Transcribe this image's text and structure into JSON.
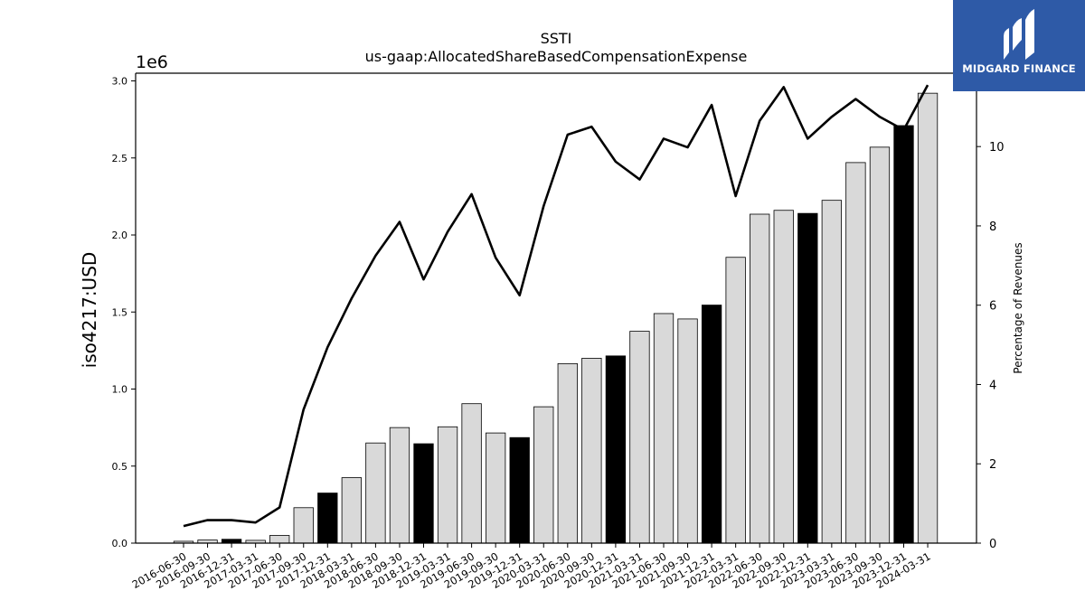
{
  "chart_data": {
    "type": "bar",
    "title": "SSTI",
    "subtitle": "us-gaap:AllocatedShareBasedCompensationExpense",
    "ylabel": "iso4217:USD",
    "y_offset_label": "1e6",
    "y2label": "Percentage of Revenues",
    "ylim": [
      0,
      3.05
    ],
    "y2lim": [
      0,
      11.85
    ],
    "yticks": [
      "0.0",
      "0.5",
      "1.0",
      "1.5",
      "2.0",
      "2.5",
      "3.0"
    ],
    "y2ticks": [
      "0",
      "2",
      "4",
      "6",
      "8",
      "10"
    ],
    "grid": false,
    "categories": [
      "2016-06-30",
      "2016-09-30",
      "2016-12-31",
      "2017-03-31",
      "2017-06-30",
      "2017-09-30",
      "2017-12-31",
      "2018-03-31",
      "2018-06-30",
      "2018-09-30",
      "2018-12-31",
      "2019-03-31",
      "2019-06-30",
      "2019-09-30",
      "2019-12-31",
      "2020-03-31",
      "2020-06-30",
      "2020-09-30",
      "2020-12-31",
      "2021-03-31",
      "2021-06-30",
      "2021-09-30",
      "2021-12-31",
      "2022-03-31",
      "2022-06-30",
      "2022-09-30",
      "2022-12-31",
      "2023-03-31",
      "2023-06-30",
      "2023-09-30",
      "2023-12-31",
      "2024-03-31"
    ],
    "series": [
      {
        "type": "bar",
        "axis": "left",
        "values": [
          0.012,
          0.02,
          0.025,
          0.018,
          0.05,
          0.23,
          0.325,
          0.425,
          0.65,
          0.75,
          0.645,
          0.755,
          0.905,
          0.715,
          0.685,
          0.885,
          1.165,
          1.2,
          1.215,
          1.375,
          1.49,
          1.455,
          1.545,
          1.855,
          2.135,
          2.16,
          2.14,
          2.225,
          2.47,
          2.57,
          2.71,
          2.92
        ],
        "fiscal_year_end": [
          false,
          false,
          true,
          false,
          false,
          false,
          true,
          false,
          false,
          false,
          true,
          false,
          false,
          false,
          true,
          false,
          false,
          false,
          true,
          false,
          false,
          false,
          true,
          false,
          false,
          false,
          true,
          false,
          false,
          false,
          true,
          false
        ]
      },
      {
        "type": "line",
        "axis": "right",
        "values": [
          0.43,
          0.58,
          0.58,
          0.52,
          0.9,
          3.37,
          4.94,
          6.17,
          7.25,
          8.1,
          6.65,
          7.85,
          8.8,
          7.2,
          6.25,
          8.5,
          10.3,
          10.5,
          9.62,
          9.17,
          10.2,
          9.98,
          11.05,
          8.75,
          10.65,
          11.5,
          10.2,
          10.75,
          11.2,
          10.75,
          10.42,
          11.55
        ]
      }
    ],
    "colors": {
      "bar": "#d9d9d9",
      "bar_highlight": "#000000",
      "line": "#000000"
    }
  },
  "logo": {
    "text": "MIDGARD FINANCE"
  }
}
